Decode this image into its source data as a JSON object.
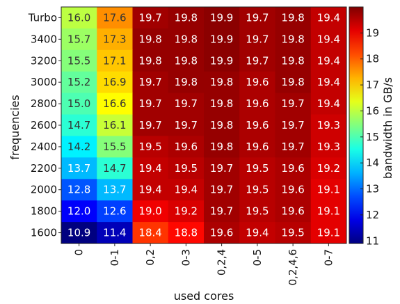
{
  "chart_data": {
    "type": "heatmap",
    "xlabel": "used cores",
    "ylabel": "frequencies",
    "x_categories": [
      "0",
      "0-1",
      "0,2",
      "0-3",
      "0,2,4",
      "0-5",
      "0,2,4,6",
      "0-7"
    ],
    "y_categories": [
      "Turbo",
      "3400",
      "3200",
      "3000",
      "2800",
      "2600",
      "2400",
      "2200",
      "2000",
      "1800",
      "1600"
    ],
    "values": [
      [
        16.0,
        17.6,
        19.7,
        19.8,
        19.9,
        19.7,
        19.8,
        19.4
      ],
      [
        15.7,
        17.3,
        19.8,
        19.8,
        19.9,
        19.7,
        19.8,
        19.4
      ],
      [
        15.5,
        17.1,
        19.8,
        19.8,
        19.9,
        19.7,
        19.8,
        19.4
      ],
      [
        15.2,
        16.9,
        19.7,
        19.8,
        19.8,
        19.6,
        19.8,
        19.4
      ],
      [
        15.0,
        16.6,
        19.7,
        19.7,
        19.8,
        19.6,
        19.7,
        19.4
      ],
      [
        14.7,
        16.1,
        19.7,
        19.7,
        19.8,
        19.6,
        19.7,
        19.3
      ],
      [
        14.2,
        15.5,
        19.5,
        19.6,
        19.8,
        19.6,
        19.7,
        19.3
      ],
      [
        13.7,
        14.7,
        19.4,
        19.5,
        19.7,
        19.5,
        19.6,
        19.2
      ],
      [
        12.8,
        13.7,
        19.4,
        19.4,
        19.7,
        19.5,
        19.6,
        19.1
      ],
      [
        12.0,
        12.6,
        19.0,
        19.2,
        19.7,
        19.5,
        19.6,
        19.1
      ],
      [
        10.9,
        11.4,
        18.4,
        18.8,
        19.6,
        19.4,
        19.5,
        19.1
      ]
    ],
    "colorbar": {
      "label": "bandwidth in GB/s",
      "range": [
        10.9,
        20.0
      ],
      "ticks": [
        "11",
        "12",
        "13",
        "14",
        "15",
        "16",
        "17",
        "18",
        "19"
      ],
      "colormap": "jet"
    }
  }
}
